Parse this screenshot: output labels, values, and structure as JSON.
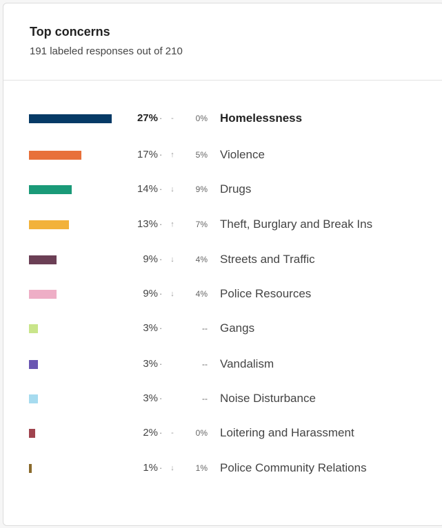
{
  "header": {
    "title": "Top concerns",
    "subtitle": "191 labeled responses out of 210"
  },
  "chart_data": {
    "type": "bar",
    "title": "Top concerns",
    "subtitle": "191 labeled responses out of 210",
    "categories": [
      "Homelessness",
      "Violence",
      "Drugs",
      "Theft, Burglary and Break Ins",
      "Streets and Traffic",
      "Police Resources",
      "Gangs",
      "Vandalism",
      "Noise Disturbance",
      "Loitering and Harassment",
      "Police Community Relations"
    ],
    "values": [
      27,
      17,
      14,
      13,
      9,
      9,
      3,
      3,
      3,
      2,
      1
    ],
    "value_labels": [
      "27%",
      "17%",
      "14%",
      "13%",
      "9%",
      "9%",
      "3%",
      "3%",
      "3%",
      "2%",
      "1%"
    ],
    "separators": [
      "·",
      "·",
      "·",
      "·",
      "·",
      "·",
      "·",
      "·",
      "·",
      "·",
      "·"
    ],
    "arrows": [
      "-",
      "↑",
      "↓",
      "↑",
      "↓",
      "↓",
      "",
      "",
      "",
      "-",
      "↓"
    ],
    "change_labels": [
      "0%",
      "5%",
      "9%",
      "7%",
      "4%",
      "4%",
      "--",
      "--",
      "--",
      "0%",
      "1%"
    ],
    "colors": [
      "#063a66",
      "#e8703a",
      "#1a9a78",
      "#f2b23a",
      "#6b3f55",
      "#eeaec6",
      "#c9e58a",
      "#6a56b2",
      "#a6dbef",
      "#a0434e",
      "#8a6a2c"
    ],
    "orientation": "horizontal",
    "xlim": [
      0,
      27
    ],
    "highlight_index": 0
  }
}
